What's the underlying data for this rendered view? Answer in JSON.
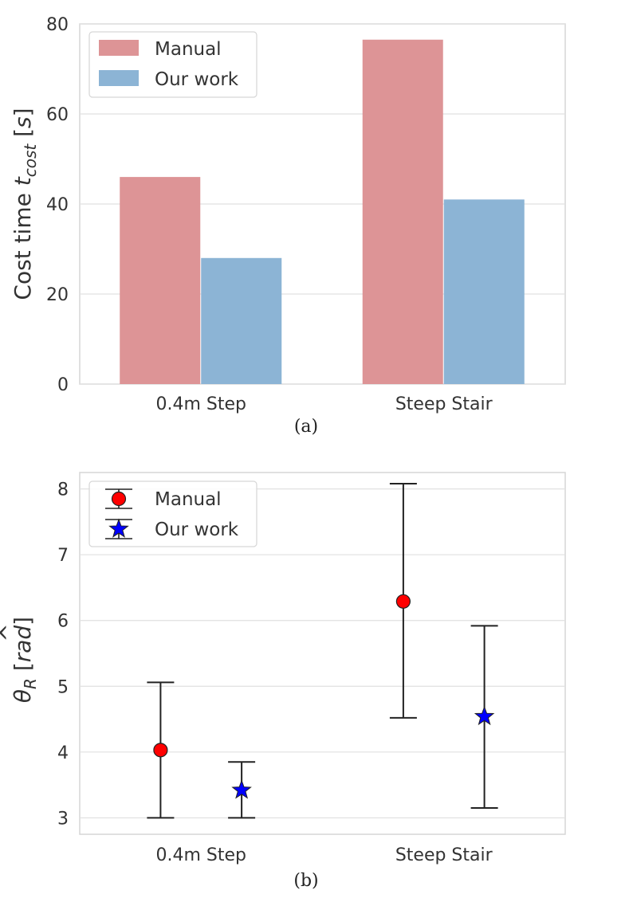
{
  "chart_data": [
    {
      "id": "a",
      "type": "bar",
      "caption": "(a)",
      "title": "",
      "xlabel": "",
      "ylabel_main": "Cost time ",
      "ylabel_var": "t",
      "ylabel_sub": "cost",
      "ylabel_unit": "s",
      "ylim": [
        0,
        80
      ],
      "yticks": [
        0,
        20,
        40,
        60,
        80
      ],
      "categories": [
        "0.4m Step",
        "Steep Stair"
      ],
      "series": [
        {
          "name": "Manual",
          "values": [
            46,
            76.5
          ],
          "color": "#dd9496"
        },
        {
          "name": "Our work",
          "values": [
            28,
            41
          ],
          "color": "#8cb4d5"
        }
      ],
      "legend_position": "top-left",
      "grid": true
    },
    {
      "id": "b",
      "type": "scatter",
      "caption": "(b)",
      "title": "",
      "xlabel": "",
      "ylabel_var": "θ",
      "ylabel_hat": "^",
      "ylabel_sub": "R",
      "ylabel_unit": "rad",
      "ylim": [
        2.75,
        8.25
      ],
      "yticks": [
        3,
        4,
        5,
        6,
        7,
        8
      ],
      "categories": [
        "0.4m Step",
        "Steep Stair"
      ],
      "series": [
        {
          "name": "Manual",
          "marker": "circle",
          "color": "#ff0000",
          "values": [
            4.03,
            6.29
          ],
          "err_low": [
            3.0,
            4.52
          ],
          "err_high": [
            5.06,
            8.08
          ]
        },
        {
          "name": "Our work",
          "marker": "star",
          "color": "#0000ff",
          "values": [
            3.42,
            4.54
          ],
          "err_low": [
            3.0,
            3.15
          ],
          "err_high": [
            3.85,
            5.92
          ]
        }
      ],
      "legend_position": "top-left",
      "grid": true
    }
  ]
}
